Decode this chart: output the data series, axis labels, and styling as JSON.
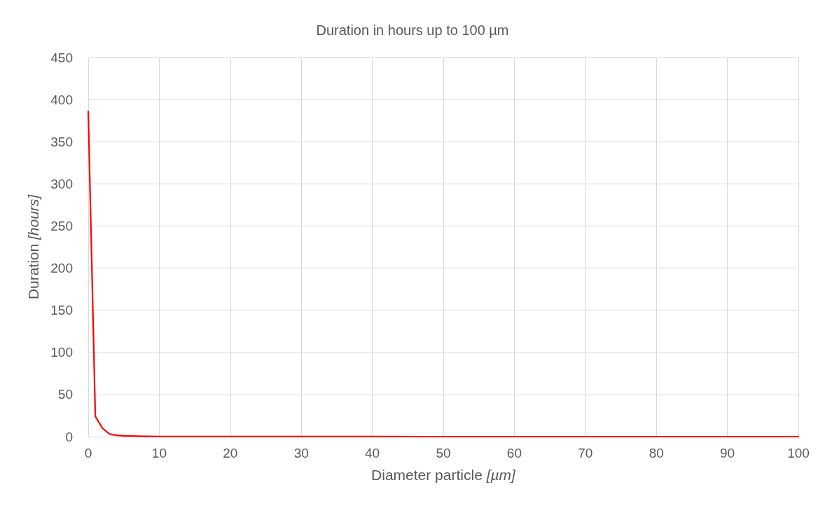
{
  "chart_data": {
    "type": "line",
    "title": "Duration in hours up to 100 µm",
    "xlabel": "Diameter particle [µm]",
    "ylabel": "Duration [hours]",
    "x": [
      0,
      1,
      2,
      3,
      4,
      5,
      6,
      8,
      10,
      20,
      50,
      100
    ],
    "series": [
      {
        "color": "#ff0000",
        "values": [
          386,
          24,
          10,
          3,
          1.5,
          1,
          0.7,
          0.3,
          0.2,
          0.1,
          0,
          0
        ]
      }
    ],
    "xlim": [
      0,
      100
    ],
    "xticks": [
      0,
      10,
      20,
      30,
      40,
      50,
      60,
      70,
      80,
      90,
      100
    ],
    "ylim": [
      0,
      450
    ],
    "yticks": [
      0,
      50,
      100,
      150,
      200,
      250,
      300,
      350,
      400,
      450
    ],
    "grid": true,
    "marker": "none",
    "line_style": "solid"
  }
}
